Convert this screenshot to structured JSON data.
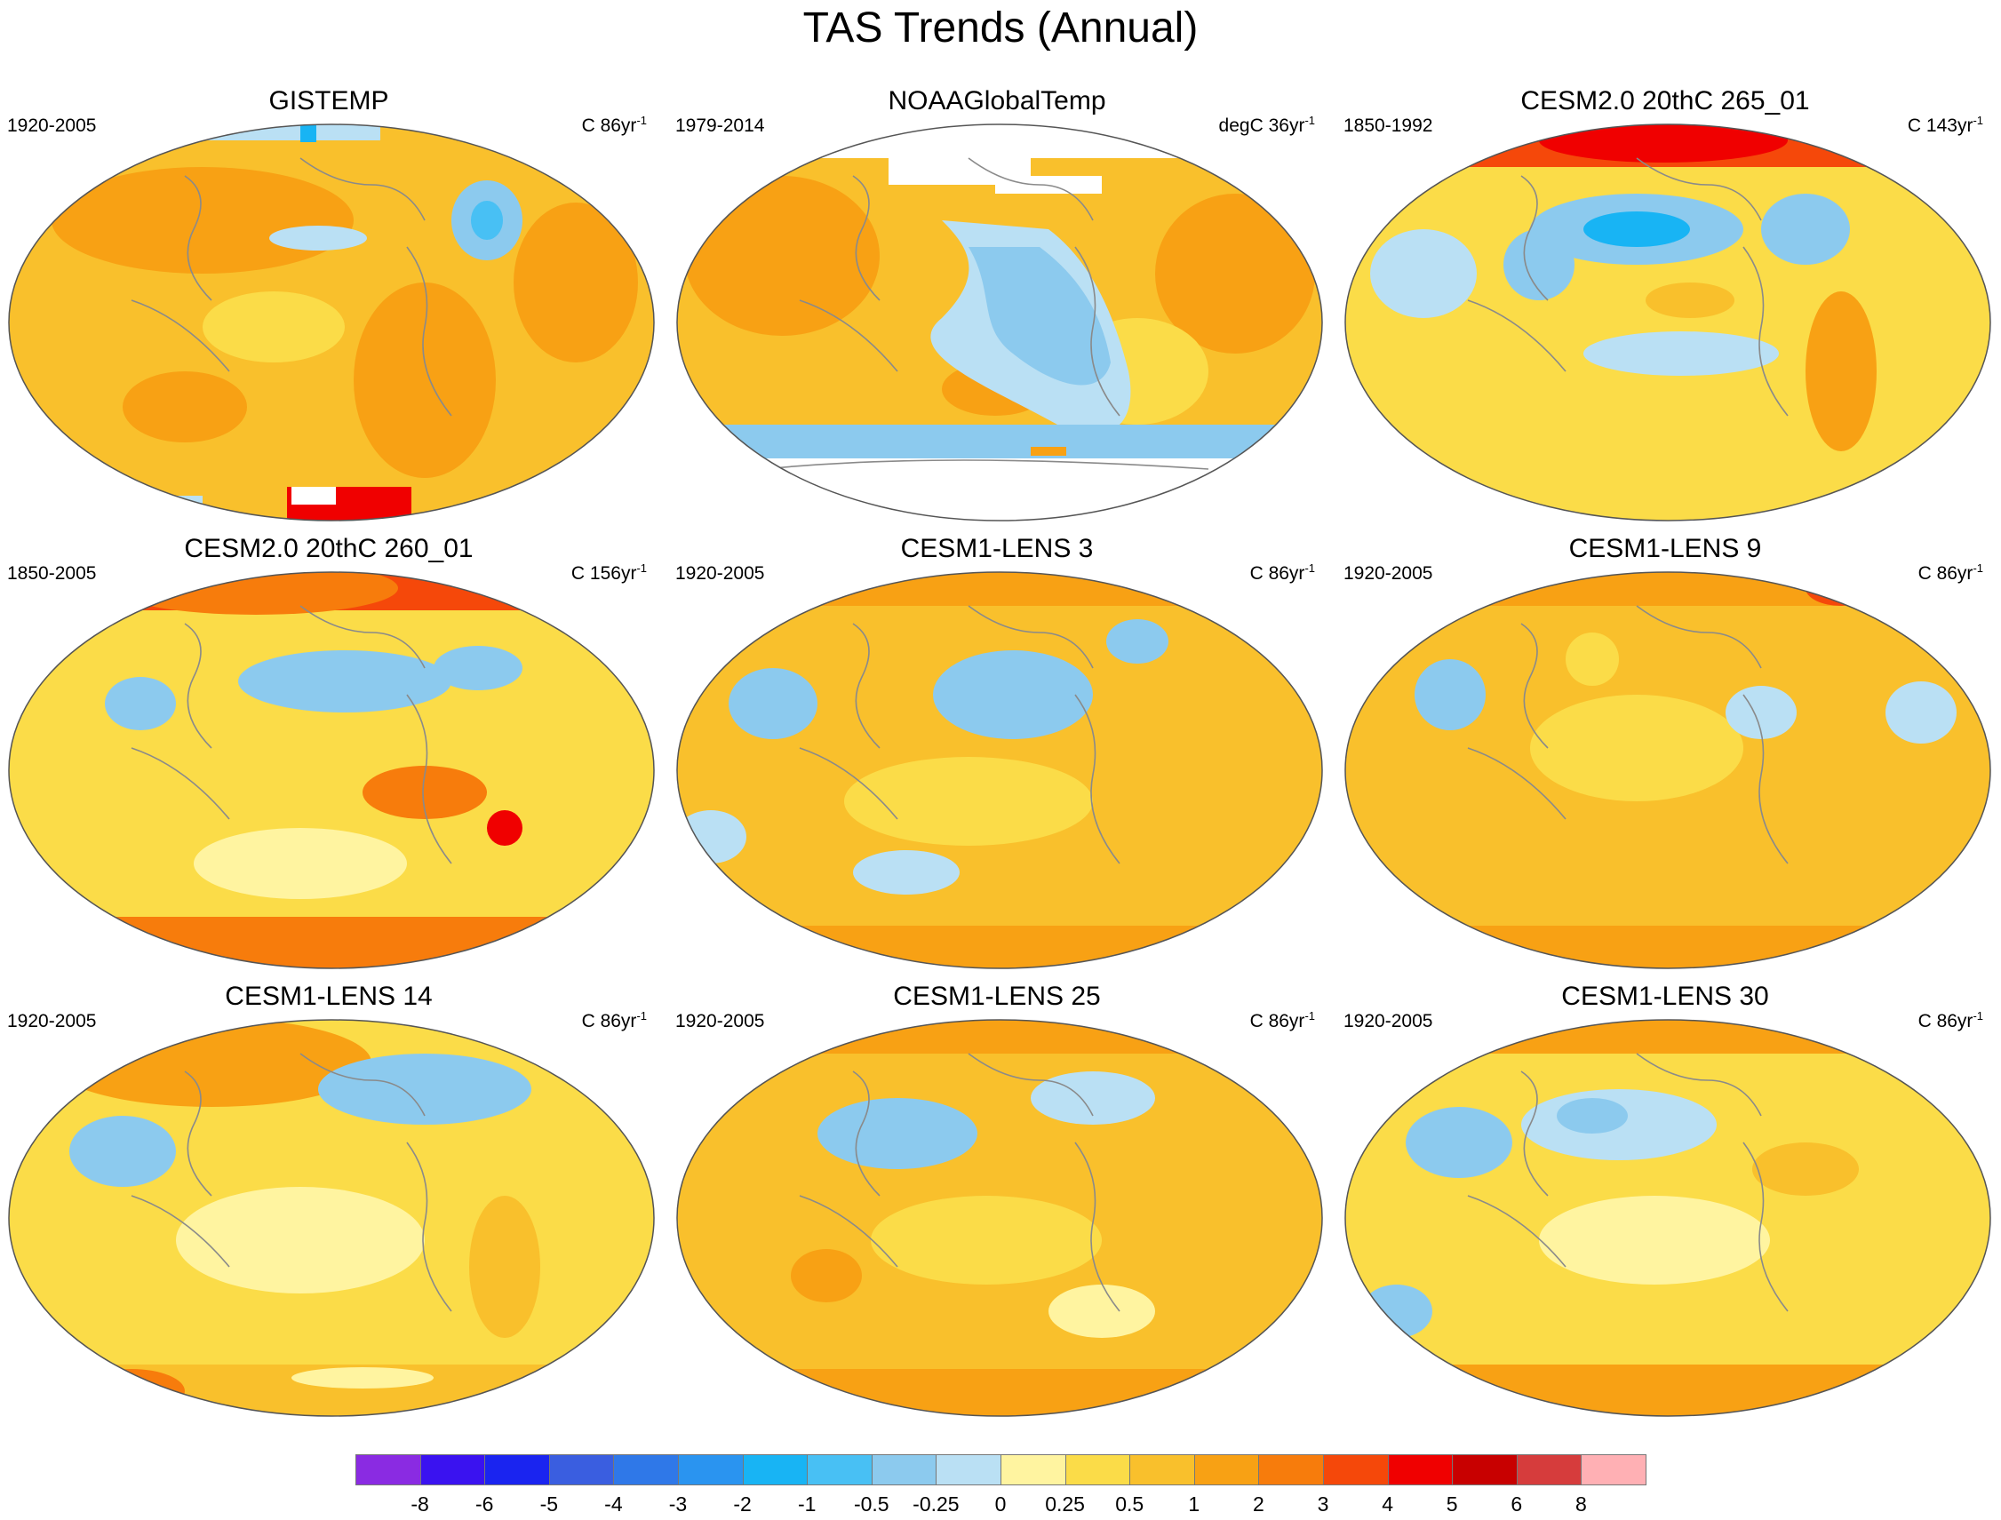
{
  "title": "TAS Trends (Annual)",
  "panels": [
    {
      "title": "GISTEMP",
      "period": "1920-2005",
      "units": "C 86yr",
      "units_exp": "-1"
    },
    {
      "title": "NOAAGlobalTemp",
      "period": "1979-2014",
      "units": "degC 36yr",
      "units_exp": "-1"
    },
    {
      "title": "CESM2.0 20thC 265_01",
      "period": "1850-1992",
      "units": "C 143yr",
      "units_exp": "-1"
    },
    {
      "title": "CESM2.0 20thC 260_01",
      "period": "1850-2005",
      "units": "C 156yr",
      "units_exp": "-1"
    },
    {
      "title": "CESM1-LENS 3",
      "period": "1920-2005",
      "units": "C 86yr",
      "units_exp": "-1"
    },
    {
      "title": "CESM1-LENS 9",
      "period": "1920-2005",
      "units": "C 86yr",
      "units_exp": "-1"
    },
    {
      "title": "CESM1-LENS 14",
      "period": "1920-2005",
      "units": "C 86yr",
      "units_exp": "-1"
    },
    {
      "title": "CESM1-LENS 25",
      "period": "1920-2005",
      "units": "C 86yr",
      "units_exp": "-1"
    },
    {
      "title": "CESM1-LENS 30",
      "period": "1920-2005",
      "units": "C 86yr",
      "units_exp": "-1"
    }
  ],
  "colorbar": {
    "labels": [
      "-8",
      "-6",
      "-5",
      "-4",
      "-3",
      "-2",
      "-1",
      "-0.5",
      "-0.25",
      "0",
      "0.25",
      "0.5",
      "1",
      "2",
      "3",
      "4",
      "5",
      "6",
      "8"
    ],
    "colors": [
      "#8a2be2",
      "#3a12f0",
      "#1a24f0",
      "#3a5ee0",
      "#2f78e8",
      "#2a94f0",
      "#18b4f4",
      "#48c0f4",
      "#8ccaee",
      "#bae0f4",
      "#fff4a0",
      "#fbdc48",
      "#f9c02c",
      "#f8a114",
      "#f77c0c",
      "#f5480a",
      "#f00000",
      "#c80000",
      "#d63c3c",
      "#ffb0b4"
    ]
  }
}
